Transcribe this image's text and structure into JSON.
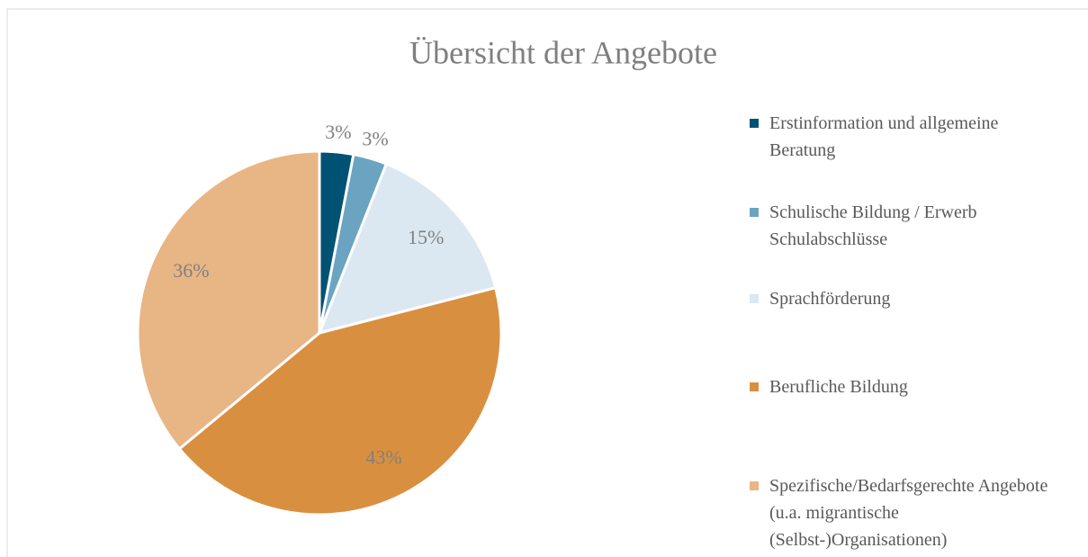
{
  "chart_data": {
    "type": "pie",
    "title": "Übersicht der Angebote",
    "categories": [
      "Erstinformation und allgemeine Beratung",
      "Schulische Bildung / Erwerb Schulabschlüsse",
      "Sprachförderung",
      "Berufliche Bildung",
      "Spezifische/Bedarfsgerechte Angebote (u.a. migrantische (Selbst-)Organisationen)"
    ],
    "values": [
      3,
      3,
      15,
      43,
      36
    ],
    "value_labels": [
      "3%",
      "3%",
      "15%",
      "43%",
      "36%"
    ],
    "colors": [
      "#005274",
      "#6aa4c1",
      "#dbe8f2",
      "#d98f40",
      "#e8b584"
    ],
    "legend": "right"
  }
}
